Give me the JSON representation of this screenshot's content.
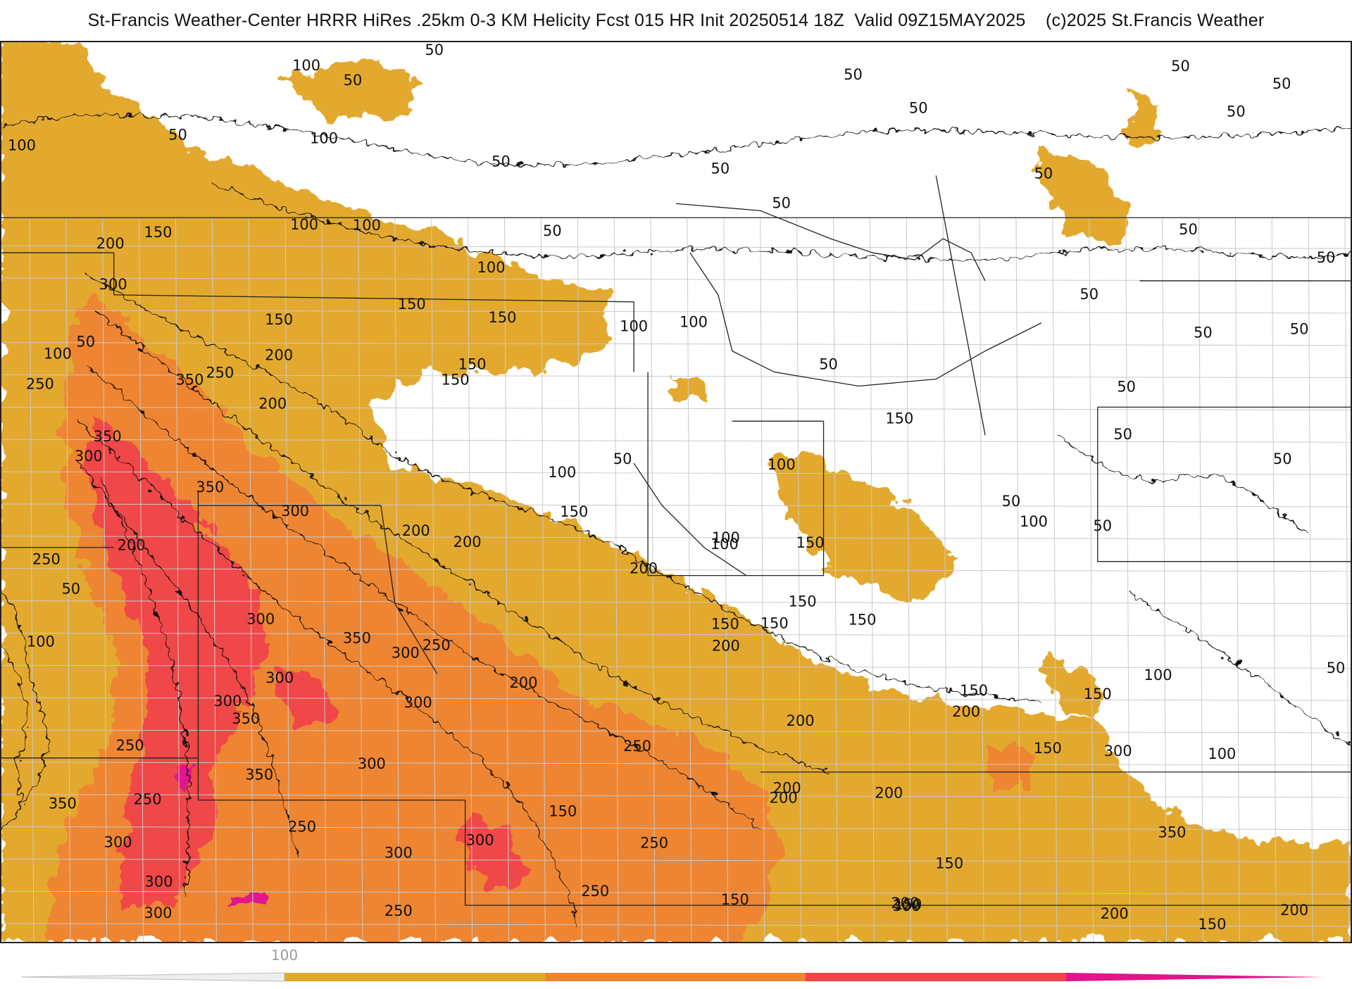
{
  "title": "St-Francis Weather-Center HRRR HiRes .25km 0-3 KM Helicity Fcst 015 HR Init 20250514 18Z  Valid 09Z15MAY2025    (c)2025 St.Francis Weather",
  "colors": {
    "band_100": "#E3A92E",
    "band_200": "#EE8530",
    "band_300": "#F04648",
    "band_400": "#E0148C",
    "contour": "#111111",
    "border": "#222222"
  },
  "legend": {
    "tick_label": "100",
    "bands": [
      "#E3A92E",
      "#EE8530",
      "#F04648",
      "#E0148C"
    ]
  },
  "contour_labels": [
    {
      "value": "100"
    },
    {
      "value": "50"
    },
    {
      "value": "50"
    },
    {
      "value": "50"
    },
    {
      "value": "100"
    },
    {
      "value": "50"
    },
    {
      "value": "50"
    },
    {
      "value": "50"
    },
    {
      "value": "50"
    },
    {
      "value": "50"
    },
    {
      "value": "50"
    },
    {
      "value": "50"
    },
    {
      "value": "50"
    },
    {
      "value": "100"
    },
    {
      "value": "50"
    },
    {
      "value": "50"
    },
    {
      "value": "50"
    },
    {
      "value": "50"
    },
    {
      "value": "200"
    },
    {
      "value": "150"
    },
    {
      "value": "100"
    },
    {
      "value": "100"
    },
    {
      "value": "50"
    },
    {
      "value": "100"
    },
    {
      "value": "50"
    },
    {
      "value": "50"
    },
    {
      "value": "300"
    },
    {
      "value": "150"
    },
    {
      "value": "150"
    },
    {
      "value": "150"
    },
    {
      "value": "150"
    },
    {
      "value": "100"
    },
    {
      "value": "100"
    },
    {
      "value": "50"
    },
    {
      "value": "50"
    },
    {
      "value": "50"
    },
    {
      "value": "200"
    },
    {
      "value": "100"
    },
    {
      "value": "50"
    },
    {
      "value": "250"
    },
    {
      "value": "150"
    },
    {
      "value": "50"
    },
    {
      "value": "250"
    },
    {
      "value": "350"
    },
    {
      "value": "200"
    },
    {
      "value": "100"
    },
    {
      "value": "150"
    },
    {
      "value": "350"
    },
    {
      "value": "50"
    },
    {
      "value": "100"
    },
    {
      "value": "50"
    },
    {
      "value": "300"
    },
    {
      "value": "100"
    },
    {
      "value": "50"
    },
    {
      "value": "350"
    },
    {
      "value": "300"
    },
    {
      "value": "150"
    },
    {
      "value": "200"
    },
    {
      "value": "100"
    },
    {
      "value": "150"
    },
    {
      "value": "100"
    },
    {
      "value": "50"
    },
    {
      "value": "200"
    },
    {
      "value": "250"
    },
    {
      "value": "200"
    },
    {
      "value": "200"
    },
    {
      "value": "150"
    },
    {
      "value": "50"
    },
    {
      "value": "300"
    },
    {
      "value": "150"
    },
    {
      "value": "100"
    },
    {
      "value": "350"
    },
    {
      "value": "250"
    },
    {
      "value": "200"
    },
    {
      "value": "150"
    },
    {
      "value": "300"
    },
    {
      "value": "300"
    },
    {
      "value": "150"
    },
    {
      "value": "300"
    },
    {
      "value": "200"
    },
    {
      "value": "150"
    },
    {
      "value": "150"
    },
    {
      "value": "100"
    },
    {
      "value": "350"
    },
    {
      "value": "300"
    },
    {
      "value": "200"
    },
    {
      "value": "200"
    },
    {
      "value": "250"
    },
    {
      "value": "250"
    },
    {
      "value": "150"
    },
    {
      "value": "200"
    },
    {
      "value": "300"
    },
    {
      "value": "350"
    },
    {
      "value": "300"
    },
    {
      "value": "250"
    },
    {
      "value": "200"
    },
    {
      "value": "100"
    },
    {
      "value": "200"
    },
    {
      "value": "350"
    },
    {
      "value": "250"
    },
    {
      "value": "300"
    },
    {
      "value": "150"
    },
    {
      "value": "350"
    },
    {
      "value": "300"
    },
    {
      "value": "300"
    },
    {
      "value": "150"
    },
    {
      "value": "200"
    },
    {
      "value": "250"
    },
    {
      "value": "300"
    },
    {
      "value": "250"
    },
    {
      "value": "300"
    },
    {
      "value": "250"
    },
    {
      "value": "150"
    },
    {
      "value": "200"
    },
    {
      "value": "150"
    },
    {
      "value": "300"
    },
    {
      "value": "200"
    },
    {
      "value": "150"
    }
  ]
}
